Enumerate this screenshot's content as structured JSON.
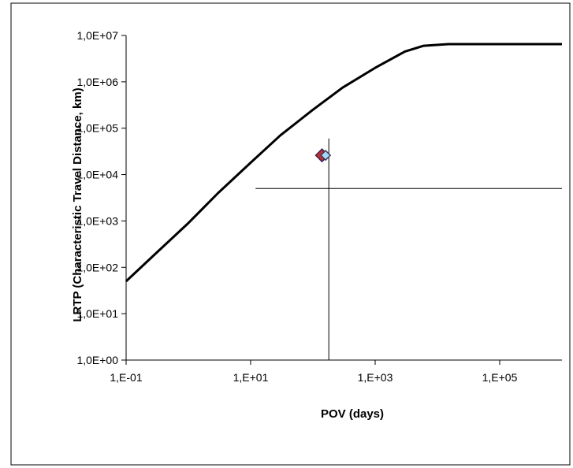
{
  "chart_data": {
    "type": "line",
    "xlabel": "POV (days)",
    "ylabel": "LRTP (Characteristic Travel Distance, km)",
    "x_scale": "log",
    "y_scale": "log",
    "xlim": [
      0.1,
      1000000
    ],
    "ylim": [
      1,
      10000000
    ],
    "x_tick_values": [
      0.1,
      10,
      1000,
      100000
    ],
    "x_tick_labels": [
      "1,E-01",
      "1,E+01",
      "1,E+03",
      "1,E+05"
    ],
    "y_tick_values": [
      1,
      10,
      100,
      1000,
      10000,
      100000,
      1000000,
      10000000
    ],
    "y_tick_labels": [
      "1,0E+00",
      "1,0E+01",
      "1,0E+02",
      "1,0E+03",
      "1,0E+04",
      "1,0E+05",
      "1,0E+06",
      "1,0E+07"
    ],
    "grid": false,
    "legend": "none",
    "series": [
      {
        "type": "line",
        "color": "#000000",
        "x": [
          0.1,
          0.3,
          1,
          3,
          10,
          30,
          100,
          300,
          1000,
          3000,
          6000,
          15000,
          100000,
          1000000
        ],
        "y": [
          50,
          200,
          900,
          4000,
          18000,
          70000,
          250000,
          750000,
          2000000,
          4500000,
          6000000,
          6500000,
          6500000,
          6500000
        ]
      }
    ],
    "points": [
      {
        "x": 140,
        "y": 26000,
        "marker": "diamond",
        "fill": "#c0302a",
        "edge": "#3a1f5a"
      },
      {
        "x": 160,
        "y": 26000,
        "marker": "diamond",
        "fill": "#a8d8ef",
        "edge": "#3a3a6a"
      }
    ],
    "reference_lines": [
      {
        "orientation": "vertical",
        "x": 180,
        "from_y": 1,
        "to_y": 60000
      },
      {
        "orientation": "horizontal",
        "y": 5000,
        "from_x": 12,
        "to_x": 1000000
      }
    ]
  }
}
